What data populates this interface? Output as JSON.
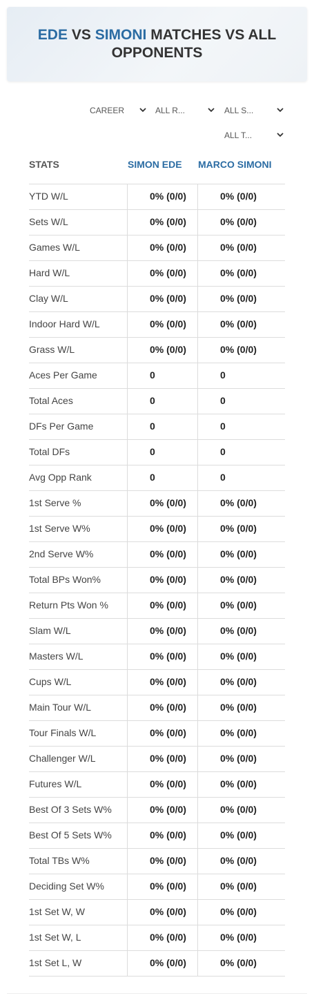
{
  "header": {
    "title": {
      "player1": "EDE",
      "vs": "VS",
      "player2": "SIMONI",
      "rest": "MATCHES VS ALL OPPONENTS"
    }
  },
  "filters": [
    "CAREER",
    "ALL R...",
    "ALL S...",
    "ALL T..."
  ],
  "table": {
    "columns": [
      "STATS",
      "SIMON EDE",
      "MARCO SIMONI"
    ],
    "rows": [
      [
        "YTD W/L",
        "0% (0/0)",
        "0% (0/0)"
      ],
      [
        "Sets W/L",
        "0% (0/0)",
        "0% (0/0)"
      ],
      [
        "Games W/L",
        "0% (0/0)",
        "0% (0/0)"
      ],
      [
        "Hard W/L",
        "0% (0/0)",
        "0% (0/0)"
      ],
      [
        "Clay W/L",
        "0% (0/0)",
        "0% (0/0)"
      ],
      [
        "Indoor Hard W/L",
        "0% (0/0)",
        "0% (0/0)"
      ],
      [
        "Grass W/L",
        "0% (0/0)",
        "0% (0/0)"
      ],
      [
        "Aces Per Game",
        0,
        0
      ],
      [
        "Total Aces",
        0,
        0
      ],
      [
        "DFs Per Game",
        0,
        0
      ],
      [
        "Total DFs",
        0,
        0
      ],
      [
        "Avg Opp Rank",
        0,
        0
      ],
      [
        "1st Serve %",
        "0% (0/0)",
        "0% (0/0)"
      ],
      [
        "1st Serve W%",
        "0% (0/0)",
        "0% (0/0)"
      ],
      [
        "2nd Serve W%",
        "0% (0/0)",
        "0% (0/0)"
      ],
      [
        "Total BPs Won%",
        "0% (0/0)",
        "0% (0/0)"
      ],
      [
        "Return Pts Won %",
        "0% (0/0)",
        "0% (0/0)"
      ],
      [
        "Slam W/L",
        "0% (0/0)",
        "0% (0/0)"
      ],
      [
        "Masters W/L",
        "0% (0/0)",
        "0% (0/0)"
      ],
      [
        "Cups W/L",
        "0% (0/0)",
        "0% (0/0)"
      ],
      [
        "Main Tour W/L",
        "0% (0/0)",
        "0% (0/0)"
      ],
      [
        "Tour Finals W/L",
        "0% (0/0)",
        "0% (0/0)"
      ],
      [
        "Challenger W/L",
        "0% (0/0)",
        "0% (0/0)"
      ],
      [
        "Futures W/L",
        "0% (0/0)",
        "0% (0/0)"
      ],
      [
        "Best Of 3 Sets W%",
        "0% (0/0)",
        "0% (0/0)"
      ],
      [
        "Best Of 5 Sets W%",
        "0% (0/0)",
        "0% (0/0)"
      ],
      [
        "Total TBs W%",
        "0% (0/0)",
        "0% (0/0)"
      ],
      [
        "Deciding Set W%",
        "0% (0/0)",
        "0% (0/0)"
      ],
      [
        "1st Set W, W",
        "0% (0/0)",
        "0% (0/0)"
      ],
      [
        "1st Set W, L",
        "0% (0/0)",
        "0% (0/0)"
      ],
      [
        "1st Set L, W",
        "0% (0/0)",
        "0% (0/0)"
      ]
    ]
  }
}
